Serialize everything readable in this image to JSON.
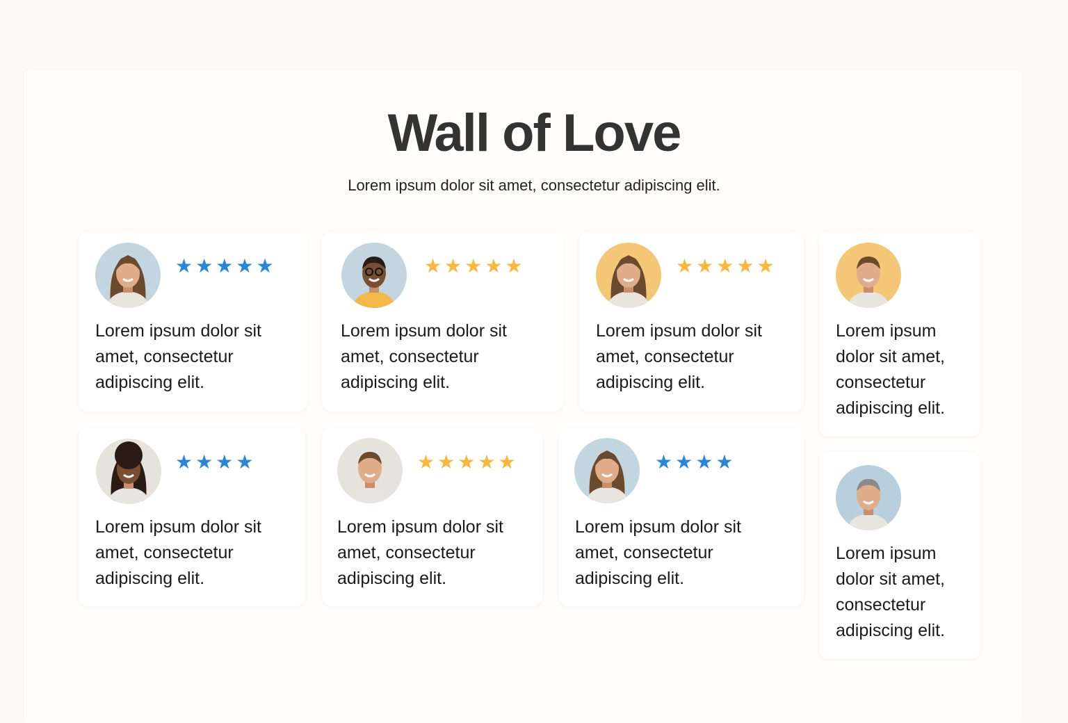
{
  "header": {
    "title": "Wall of Love",
    "subtitle": "Lorem ipsum dolor sit amet, consectetur adipiscing elit."
  },
  "colors": {
    "star_blue": "#2a86d8",
    "star_orange": "#f8b73f"
  },
  "testimonials": [
    {
      "text": "Lorem ipsum dolor sit amet, consectetur adipiscing elit.",
      "rating": 5,
      "star_color": "blue",
      "avatar_bg": "#c3d6e0",
      "icon": "avatar-woman"
    },
    {
      "text": "Lorem ipsum dolor sit amet, consectetur adipiscing elit.",
      "rating": 5,
      "star_color": "orange",
      "avatar_bg": "#c3d6e0",
      "icon": "avatar-man-glasses"
    },
    {
      "text": "Lorem ipsum dolor sit amet, consectetur adipiscing elit.",
      "rating": 5,
      "star_color": "orange",
      "avatar_bg": "#f4c776",
      "icon": "avatar-woman"
    },
    {
      "text": "Lorem ipsum dolor sit amet, consectetur adipiscing elit.",
      "rating": 0,
      "star_color": "",
      "avatar_bg": "#f4c776",
      "icon": "avatar-man-beard"
    },
    {
      "text": "Lorem ipsum dolor sit amet, consectetur adipiscing elit.",
      "rating": 4,
      "star_color": "blue",
      "avatar_bg": "#e6e2dc",
      "icon": "avatar-woman-curly"
    },
    {
      "text": "Lorem ipsum dolor sit amet, consectetur adipiscing elit.",
      "rating": 5,
      "star_color": "orange",
      "avatar_bg": "#e6e2dc",
      "icon": "avatar-man"
    },
    {
      "text": "Lorem ipsum dolor sit amet, consectetur adipiscing elit.",
      "rating": 4,
      "star_color": "blue",
      "avatar_bg": "#c3d6e0",
      "icon": "avatar-woman"
    },
    {
      "text": "Lorem ipsum dolor sit amet, consectetur adipiscing elit.",
      "rating": 0,
      "star_color": "",
      "avatar_bg": "#b9cfdc",
      "icon": "avatar-man-gray"
    }
  ]
}
